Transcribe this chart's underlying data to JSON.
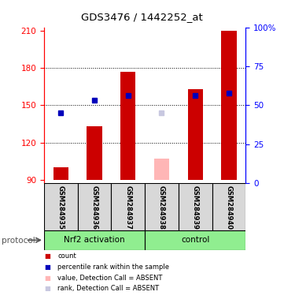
{
  "title": "GDS3476 / 1442252_at",
  "samples": [
    "GSM284935",
    "GSM284936",
    "GSM284937",
    "GSM284938",
    "GSM284939",
    "GSM284940"
  ],
  "ylim_left": [
    87,
    213
  ],
  "ylim_right": [
    0,
    100
  ],
  "yticks_left": [
    90,
    120,
    150,
    180,
    210
  ],
  "yticks_right": [
    0,
    25,
    50,
    75,
    100
  ],
  "red_bars": [
    100,
    133,
    177,
    null,
    163,
    210
  ],
  "blue_squares": [
    144,
    154,
    158,
    null,
    158,
    160
  ],
  "pink_bars": [
    null,
    null,
    null,
    107,
    null,
    null
  ],
  "lavender_squares": [
    null,
    null,
    null,
    144,
    null,
    null
  ],
  "bar_bottom": 90,
  "legend_colors": [
    "#cc0000",
    "#0000bb",
    "#ffb6b6",
    "#c8c8e0"
  ],
  "legend_labels": [
    "count",
    "percentile rank within the sample",
    "value, Detection Call = ABSENT",
    "rank, Detection Call = ABSENT"
  ],
  "group1_label": "Nrf2 activation",
  "group2_label": "control",
  "protocol_label": "protocol",
  "plot_bg": "#ffffff",
  "sample_bg": "#d8d8d8",
  "group_bg": "#90ee90"
}
